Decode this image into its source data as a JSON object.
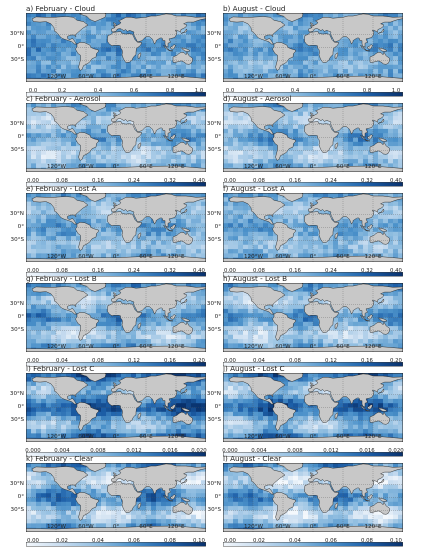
{
  "colormap": [
    "#f4f8fc",
    "#c6dbef",
    "#8fbde0",
    "#4a90c9",
    "#1d5fa8",
    "#08306b"
  ],
  "land_color": "#c8c8c8",
  "coast_color": "#222222",
  "lat_labels": [
    "30°N",
    "0°",
    "30°S"
  ],
  "lon_labels": [
    "120°W",
    "60°W",
    "0°",
    "60°E",
    "120°E"
  ],
  "rows": [
    {
      "colorbar_ticks": [
        "0.0",
        "0.2",
        "0.4",
        "0.6",
        "0.8",
        "1.0"
      ],
      "panels": [
        {
          "title": "a) February - Cloud",
          "base": 0.55,
          "amp": 0.15,
          "seed": 1
        },
        {
          "title": "b) August - Cloud",
          "base": 0.5,
          "amp": 0.15,
          "seed": 2
        }
      ]
    },
    {
      "colorbar_ticks": [
        "0.00",
        "0.08",
        "0.16",
        "0.24",
        "0.32",
        "0.40"
      ],
      "panels": [
        {
          "title": "c) February - Aerosol",
          "base": 0.4,
          "amp": 0.3,
          "seed": 3
        },
        {
          "title": "d) August - Aerosol",
          "base": 0.42,
          "amp": 0.3,
          "seed": 4
        }
      ]
    },
    {
      "colorbar_ticks": [
        "0.00",
        "0.08",
        "0.16",
        "0.24",
        "0.32",
        "0.40"
      ],
      "panels": [
        {
          "title": "e) February - Lost A",
          "base": 0.45,
          "amp": 0.2,
          "seed": 5
        },
        {
          "title": "f) August - Lost A",
          "base": 0.45,
          "amp": 0.2,
          "seed": 6
        }
      ]
    },
    {
      "colorbar_ticks": [
        "0.00",
        "0.04",
        "0.08",
        "0.12",
        "0.16",
        "0.20"
      ],
      "panels": [
        {
          "title": "g) February - Lost B",
          "base": 0.45,
          "amp": 0.35,
          "seed": 7
        },
        {
          "title": "h) August - Lost B",
          "base": 0.42,
          "amp": 0.35,
          "seed": 8
        }
      ]
    },
    {
      "colorbar_ticks": [
        "0.000",
        "0.004",
        "0.008",
        "0.012",
        "0.016",
        "0.020"
      ],
      "panels": [
        {
          "title": "i) February - Lost C",
          "base": 0.6,
          "amp": 0.45,
          "seed": 9
        },
        {
          "title": "j) August - Lost C",
          "base": 0.55,
          "amp": 0.45,
          "seed": 10
        }
      ]
    },
    {
      "colorbar_ticks": [
        "0.00",
        "0.02",
        "0.04",
        "0.06",
        "0.08",
        "0.10"
      ],
      "panels": [
        {
          "title": "k) February - Clear",
          "base": 0.45,
          "amp": 0.45,
          "seed": 11
        },
        {
          "title": "l) August - Clear",
          "base": 0.4,
          "amp": 0.45,
          "seed": 12
        }
      ]
    }
  ]
}
